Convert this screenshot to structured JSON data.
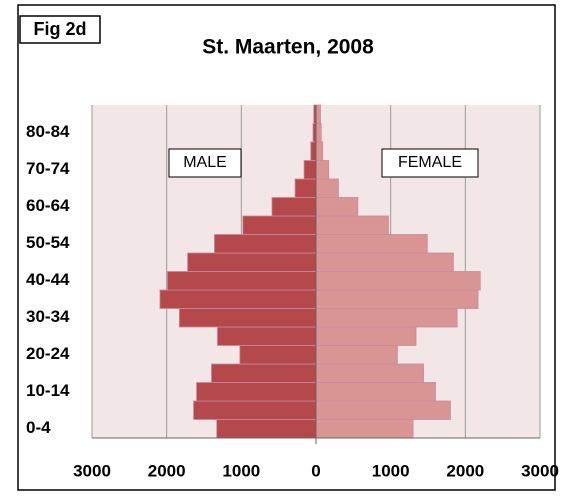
{
  "chart_data": {
    "type": "pyramid",
    "title": "St. Maarten, 2008",
    "figure_label": "Fig 2d",
    "categories": [
      "0-4",
      null,
      "10-14",
      null,
      "20-24",
      null,
      "30-34",
      null,
      "40-44",
      null,
      "50-54",
      null,
      "60-64",
      null,
      "70-74",
      null,
      "80-84",
      null
    ],
    "series": [
      {
        "name": "MALE",
        "color": "#b5484a",
        "side": "left",
        "values": [
          1330,
          1640,
          1600,
          1400,
          1020,
          1320,
          1830,
          2090,
          1990,
          1720,
          1360,
          980,
          590,
          280,
          160,
          70,
          40,
          30
        ]
      },
      {
        "name": "FEMALE",
        "color": "#d99594",
        "side": "right",
        "values": [
          1300,
          1800,
          1600,
          1440,
          1090,
          1340,
          1890,
          2170,
          2200,
          1840,
          1490,
          970,
          560,
          300,
          170,
          90,
          70,
          60
        ]
      }
    ],
    "xlim": [
      -3000,
      3000
    ],
    "xticks": [
      {
        "value": -3000,
        "label": "3000"
      },
      {
        "value": -2000,
        "label": "2000"
      },
      {
        "value": -1000,
        "label": "1000"
      },
      0,
      1000,
      2000,
      3000
    ],
    "grid": true
  }
}
